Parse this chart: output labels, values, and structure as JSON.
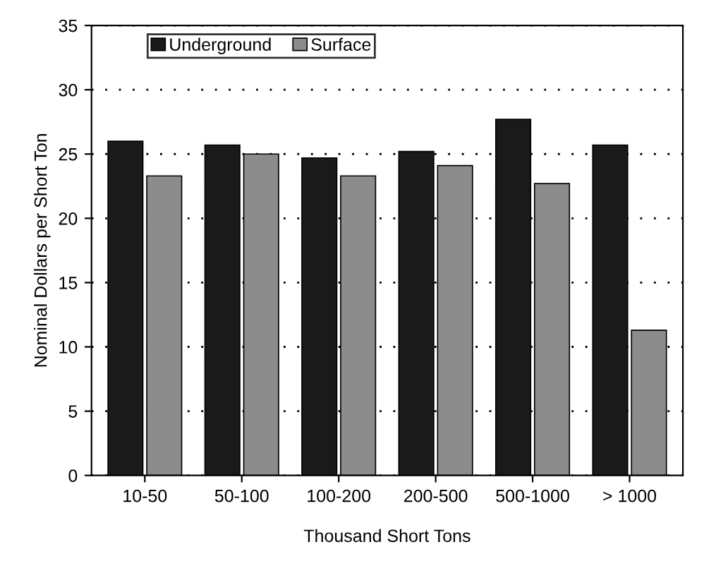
{
  "chart_data": {
    "type": "bar",
    "xlabel": "Thousand Short Tons",
    "ylabel": "Nominal Dollars per Short Ton",
    "categories": [
      "10-50",
      "50-100",
      "100-200",
      "200-500",
      "500-1000",
      "> 1000"
    ],
    "series": [
      {
        "name": "Underground",
        "color": "#1a1a1a",
        "values": [
          26.0,
          25.7,
          24.7,
          25.2,
          27.7,
          25.7
        ]
      },
      {
        "name": "Surface",
        "color": "#8c8c8c",
        "values": [
          23.3,
          25.0,
          23.3,
          24.1,
          22.7,
          11.3
        ]
      }
    ],
    "ylim": [
      0,
      35
    ],
    "yticks": [
      0,
      5,
      10,
      15,
      20,
      25,
      30,
      35
    ],
    "grid": "y",
    "legend": "top left"
  }
}
